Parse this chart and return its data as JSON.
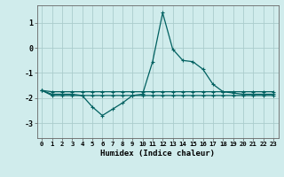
{
  "xlabel": "Humidex (Indice chaleur)",
  "ylabel": "",
  "xlim": [
    -0.5,
    23.5
  ],
  "ylim": [
    -3.6,
    1.7
  ],
  "bg_color": "#d0ecec",
  "grid_color": "#aacccc",
  "line_color": "#006060",
  "x": [
    0,
    1,
    2,
    3,
    4,
    5,
    6,
    7,
    8,
    9,
    10,
    11,
    12,
    13,
    14,
    15,
    16,
    17,
    18,
    19,
    20,
    21,
    22,
    23
  ],
  "y_main": [
    -1.7,
    -1.85,
    -1.85,
    -1.85,
    -1.9,
    -2.35,
    -2.7,
    -2.45,
    -2.2,
    -1.9,
    -1.85,
    -0.55,
    1.4,
    -0.05,
    -0.5,
    -0.55,
    -0.85,
    -1.45,
    -1.75,
    -1.8,
    -1.85,
    -1.85,
    -1.85,
    -1.85
  ],
  "y_upper": [
    -1.7,
    -1.75,
    -1.75,
    -1.75,
    -1.75,
    -1.75,
    -1.75,
    -1.75,
    -1.75,
    -1.75,
    -1.75,
    -1.75,
    -1.75,
    -1.75,
    -1.75,
    -1.75,
    -1.75,
    -1.75,
    -1.75,
    -1.75,
    -1.75,
    -1.75,
    -1.75,
    -1.75
  ],
  "y_lower": [
    -1.7,
    -1.9,
    -1.9,
    -1.9,
    -1.9,
    -1.9,
    -1.9,
    -1.9,
    -1.9,
    -1.9,
    -1.9,
    -1.9,
    -1.9,
    -1.9,
    -1.9,
    -1.9,
    -1.9,
    -1.9,
    -1.9,
    -1.9,
    -1.9,
    -1.9,
    -1.9,
    -1.9
  ],
  "ytick_values": [
    -3,
    -2,
    -1,
    0,
    1
  ],
  "marker": "+",
  "markersize": 3,
  "linewidth": 0.9,
  "tick_fontsize": 5.2,
  "xlabel_fontsize": 6.5
}
